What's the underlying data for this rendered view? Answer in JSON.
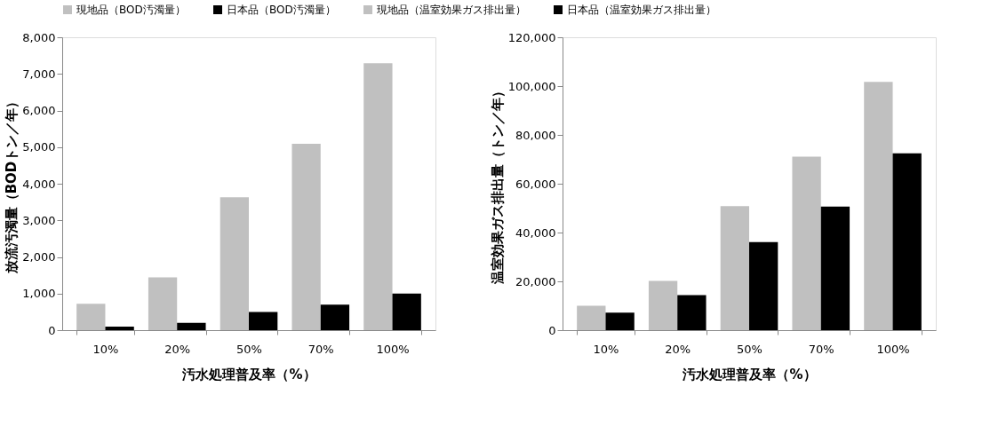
{
  "chart_data": [
    {
      "type": "bar",
      "categories": [
        "10%",
        "20%",
        "50%",
        "70%",
        "100%"
      ],
      "xlabel": "汚水処理普及率（%）",
      "ylabel": "放流汚濁量（BODトン／年）",
      "ylim": [
        0,
        8000
      ],
      "yticks": [
        0,
        {
          "value": 1000,
          "label": "1,000"
        },
        {
          "value": 2000,
          "label": "2,000"
        },
        {
          "value": 3000,
          "label": "3,000"
        },
        {
          "value": 4000,
          "label": "4,000"
        },
        {
          "value": 5000,
          "label": "5,000"
        },
        {
          "value": 6000,
          "label": "6,000"
        },
        {
          "value": 7000,
          "label": "7,000"
        },
        {
          "value": 8000,
          "label": "8,000"
        }
      ],
      "grid": false,
      "legend": "top",
      "series": [
        {
          "name": "現地品（BOD汚濁量）",
          "color": "#c0c0c0",
          "values": [
            720,
            1440,
            3630,
            5090,
            7290
          ]
        },
        {
          "name": "日本品（BOD汚濁量）",
          "color": "#000000",
          "values": [
            100,
            200,
            500,
            700,
            1000
          ]
        }
      ]
    },
    {
      "type": "bar",
      "categories": [
        "10%",
        "20%",
        "50%",
        "70%",
        "100%"
      ],
      "xlabel": "汚水処理普及率（%）",
      "ylabel": "温室効果ガス排出量（トン／年）",
      "ylim": [
        0,
        120000
      ],
      "yticks": [
        0,
        {
          "value": 20000,
          "label": "20,000"
        },
        {
          "value": 40000,
          "label": "40,000"
        },
        {
          "value": 60000,
          "label": "60,000"
        },
        {
          "value": 80000,
          "label": "80,000"
        },
        {
          "value": 100000,
          "label": "100,000"
        },
        {
          "value": 120000,
          "label": "120,000"
        }
      ],
      "grid": false,
      "legend": "top",
      "series": [
        {
          "name": "現地品（温室効果ガス排出量）",
          "color": "#c0c0c0",
          "values": [
            10000,
            20200,
            50800,
            71100,
            101700
          ]
        },
        {
          "name": "日本品（温室効果ガス排出量）",
          "color": "#000000",
          "values": [
            7200,
            14400,
            36100,
            50600,
            72500
          ]
        }
      ]
    }
  ]
}
